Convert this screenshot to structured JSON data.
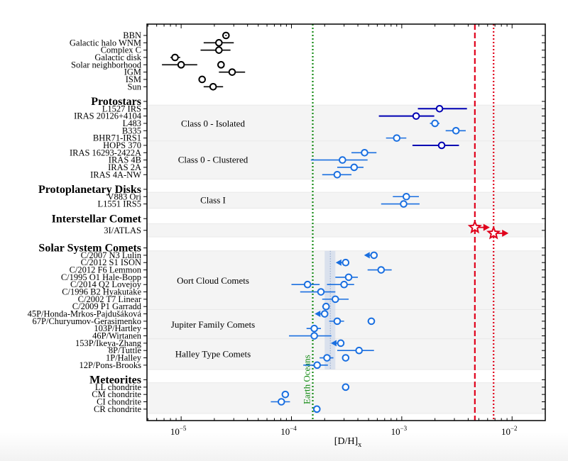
{
  "chart_data": {
    "type": "scatter",
    "title": "",
    "xlabel": "[D/H]",
    "xlabel_sub": "x",
    "xscale": "log",
    "xlim": [
      4.9e-06,
      0.02
    ],
    "x_ticks": [
      {
        "value": 1e-05,
        "base": "10",
        "exp": "−5"
      },
      {
        "value": 0.0001,
        "base": "10",
        "exp": "−4"
      },
      {
        "value": 0.001,
        "base": "10",
        "exp": "−3"
      },
      {
        "value": 0.01,
        "base": "10",
        "exp": "−2"
      }
    ],
    "colors": {
      "black": "#000000",
      "navy": "#0000b3",
      "blue": "#1a6fe0",
      "red": "#e0001b",
      "green": "#138a13",
      "band": "#c8d4e8",
      "group": "#f4f4f4"
    },
    "rows": [
      {
        "label": "BBN",
        "heading": false,
        "y": 0
      },
      {
        "label": "Galactic halo WNM",
        "heading": false,
        "y": 1
      },
      {
        "label": "Complex C",
        "heading": false,
        "y": 2
      },
      {
        "label": "Galactic disk",
        "heading": false,
        "y": 3
      },
      {
        "label": "Solar neighborhood",
        "heading": false,
        "y": 4
      },
      {
        "label": "IGM",
        "heading": false,
        "y": 5
      },
      {
        "label": "ISM",
        "heading": false,
        "y": 6
      },
      {
        "label": "Sun",
        "heading": false,
        "y": 7
      },
      {
        "label": "Protostars",
        "heading": true,
        "y": 9
      },
      {
        "label": "L1527 IRS",
        "heading": false,
        "y": 10
      },
      {
        "label": "IRAS 20126+4104",
        "heading": false,
        "y": 11
      },
      {
        "label": "L483",
        "heading": false,
        "y": 12
      },
      {
        "label": "B335",
        "heading": false,
        "y": 13
      },
      {
        "label": "BHR71-IRS1",
        "heading": false,
        "y": 14
      },
      {
        "label": "HOPS 370",
        "heading": false,
        "y": 15
      },
      {
        "label": "IRAS 16293-2422A",
        "heading": false,
        "y": 16
      },
      {
        "label": "IRAS 4B",
        "heading": false,
        "y": 17
      },
      {
        "label": "IRAS 2A",
        "heading": false,
        "y": 18
      },
      {
        "label": "IRAS 4A-NW",
        "heading": false,
        "y": 19
      },
      {
        "label": "Protoplanetary Disks",
        "heading": true,
        "y": 21
      },
      {
        "label": "V883 Ori",
        "heading": false,
        "y": 22
      },
      {
        "label": "L1551 IRS5",
        "heading": false,
        "y": 23
      },
      {
        "label": "Interstellar Comet",
        "heading": true,
        "y": 25
      },
      {
        "label": "3I/ATLAS",
        "heading": false,
        "y": 26.6
      },
      {
        "label": "Solar System Comets",
        "heading": true,
        "y": 29
      },
      {
        "label": "C/2007 N3 Lulin",
        "heading": false,
        "y": 30
      },
      {
        "label": "C/2012 S1 ISON",
        "heading": false,
        "y": 31
      },
      {
        "label": "C/2012 F6 Lemmon",
        "heading": false,
        "y": 32
      },
      {
        "label": "C/1995 O1 Hale-Bopp",
        "heading": false,
        "y": 33
      },
      {
        "label": "C/2014 Q2 Lovejoy",
        "heading": false,
        "y": 34
      },
      {
        "label": "C/1996 B2 Hyakutake",
        "heading": false,
        "y": 35
      },
      {
        "label": "C/2002 T7 Linear",
        "heading": false,
        "y": 36
      },
      {
        "label": "C/2009 P1 Garradd",
        "heading": false,
        "y": 37
      },
      {
        "label": "45P/Honda-Mrkos-Pajdušáková",
        "heading": false,
        "y": 38
      },
      {
        "label": "67P/Churyumov-Gerasimenko",
        "heading": false,
        "y": 39
      },
      {
        "label": "103P/Hartley",
        "heading": false,
        "y": 40
      },
      {
        "label": "46P/Wirtanen",
        "heading": false,
        "y": 41
      },
      {
        "label": "153P/Ikeya-Zhang",
        "heading": false,
        "y": 42
      },
      {
        "label": "8P/Tuttle",
        "heading": false,
        "y": 43
      },
      {
        "label": "1P/Halley",
        "heading": false,
        "y": 44
      },
      {
        "label": "12P/Pons-Brooks",
        "heading": false,
        "y": 45
      },
      {
        "label": "Meteorites",
        "heading": true,
        "y": 47
      },
      {
        "label": "LL chondrite",
        "heading": false,
        "y": 48
      },
      {
        "label": "CM chondrite",
        "heading": false,
        "y": 49
      },
      {
        "label": "CI chondrite",
        "heading": false,
        "y": 50
      },
      {
        "label": "CR chondrite",
        "heading": false,
        "y": 51
      }
    ],
    "groups": [
      {
        "label": "Class 0 - Isolated",
        "y_from": 9.6,
        "y_to": 14.5
      },
      {
        "label": "Class 0 - Clustered",
        "y_from": 14.5,
        "y_to": 19.5
      },
      {
        "label": "Class I",
        "y_from": 21.5,
        "y_to": 23.5
      },
      {
        "label": "",
        "y_from": 25.8,
        "y_to": 27.4
      },
      {
        "label": "Oort Cloud Comets",
        "y_from": 29.5,
        "y_to": 37.5
      },
      {
        "label": "Jupiter Family Comets",
        "y_from": 37.5,
        "y_to": 41.5
      },
      {
        "label": "Halley Type Comets",
        "y_from": 41.5,
        "y_to": 45.5
      },
      {
        "label": "",
        "y_from": 47.5,
        "y_to": 51.5
      }
    ],
    "points": [
      {
        "name": "BBN",
        "y": 0,
        "x": 2.55e-05,
        "lo": 2.5e-05,
        "hi": 2.6e-05,
        "color": "black",
        "marker": "circle-dot"
      },
      {
        "name": "Galactic halo WNM",
        "y": 1,
        "x": 2.2e-05,
        "lo": 1.6e-05,
        "hi": 3e-05,
        "color": "black",
        "marker": "circle"
      },
      {
        "name": "Complex C",
        "y": 2,
        "x": 2.2e-05,
        "lo": 1.5e-05,
        "hi": 2.8e-05,
        "color": "black",
        "marker": "circle"
      },
      {
        "name": "Galactic disk",
        "y": 3,
        "x": 8.8e-06,
        "lo": 8e-06,
        "hi": 9.8e-06,
        "color": "black",
        "marker": "circle"
      },
      {
        "name": "Solar neighborhood",
        "y": 4,
        "x": 1e-05,
        "lo": 6.7e-06,
        "hi": 1.4e-05,
        "color": "black",
        "marker": "circle"
      },
      {
        "name": "Solar neighborhood",
        "y": 4,
        "x": 2.3e-05,
        "lo": 2.15e-05,
        "hi": 2.45e-05,
        "color": "black",
        "marker": "circle"
      },
      {
        "name": "IGM",
        "y": 5,
        "x": 2.9e-05,
        "lo": 2.2e-05,
        "hi": 3.8e-05,
        "color": "black",
        "marker": "circle"
      },
      {
        "name": "ISM",
        "y": 6,
        "x": 1.55e-05,
        "lo": 1.5e-05,
        "hi": 1.6e-05,
        "color": "black",
        "marker": "circle"
      },
      {
        "name": "Sun",
        "y": 7,
        "x": 1.95e-05,
        "lo": 1.6e-05,
        "hi": 2.4e-05,
        "color": "black",
        "marker": "circle"
      },
      {
        "name": "L1527 IRS",
        "y": 10,
        "x": 0.0022,
        "lo": 0.0014,
        "hi": 0.0039,
        "color": "navy",
        "marker": "circle"
      },
      {
        "name": "IRAS 20126+4104",
        "y": 11,
        "x": 0.00135,
        "lo": 0.00062,
        "hi": 0.00197,
        "color": "navy",
        "marker": "circle"
      },
      {
        "name": "L483",
        "y": 12,
        "x": 0.002,
        "lo": 0.0018,
        "hi": 0.0022,
        "color": "blue",
        "marker": "circle"
      },
      {
        "name": "B335",
        "y": 13,
        "x": 0.0031,
        "lo": 0.0025,
        "hi": 0.0038,
        "color": "blue",
        "marker": "circle"
      },
      {
        "name": "BHR71-IRS1",
        "y": 14,
        "x": 0.0009,
        "lo": 0.00072,
        "hi": 0.0011,
        "color": "blue",
        "marker": "circle"
      },
      {
        "name": "HOPS 370",
        "y": 15,
        "x": 0.0023,
        "lo": 0.00125,
        "hi": 0.0033,
        "color": "navy",
        "marker": "circle"
      },
      {
        "name": "IRAS 16293-2422A",
        "y": 16,
        "x": 0.00046,
        "lo": 0.00035,
        "hi": 0.00059,
        "color": "blue",
        "marker": "circle"
      },
      {
        "name": "IRAS 4B",
        "y": 17,
        "x": 0.00029,
        "lo": 0.00015,
        "hi": 0.00049,
        "color": "blue",
        "marker": "circle"
      },
      {
        "name": "IRAS 2A",
        "y": 18,
        "x": 0.00037,
        "lo": 0.00026,
        "hi": 0.00045,
        "color": "blue",
        "marker": "circle"
      },
      {
        "name": "IRAS 4A-NW",
        "y": 19,
        "x": 0.00026,
        "lo": 0.00019,
        "hi": 0.00035,
        "color": "blue",
        "marker": "circle"
      },
      {
        "name": "V883 Ori",
        "y": 22,
        "x": 0.0011,
        "lo": 0.00083,
        "hi": 0.00143,
        "color": "blue",
        "marker": "circle"
      },
      {
        "name": "L1551 IRS5",
        "y": 23,
        "x": 0.00104,
        "lo": 0.00065,
        "hi": 0.00145,
        "color": "blue",
        "marker": "circle"
      },
      {
        "name": "3I/ATLAS",
        "y": 26.2,
        "x": 0.0046,
        "color": "red",
        "marker": "star",
        "limit": "lower"
      },
      {
        "name": "3I/ATLAS",
        "y": 27.0,
        "x": 0.0068,
        "color": "red",
        "marker": "star",
        "limit": "lower"
      },
      {
        "name": "C/2007 N3 Lulin",
        "y": 30,
        "x": 0.00056,
        "color": "blue",
        "marker": "circle",
        "limit": "upper"
      },
      {
        "name": "C/2012 S1 ISON",
        "y": 31,
        "x": 0.00031,
        "color": "blue",
        "marker": "circle",
        "limit": "upper"
      },
      {
        "name": "C/2012 F6 Lemmon",
        "y": 32,
        "x": 0.00065,
        "lo": 0.00049,
        "hi": 0.00081,
        "color": "blue",
        "marker": "circle"
      },
      {
        "name": "C/1995 O1 Hale-Bopp",
        "y": 33,
        "x": 0.00033,
        "lo": 0.00025,
        "hi": 0.0004,
        "color": "blue",
        "marker": "circle"
      },
      {
        "name": "C/2014 Q2 Lovejoy",
        "y": 34,
        "x": 0.00014,
        "lo": 0.0001,
        "hi": 0.00018,
        "color": "blue",
        "marker": "circle"
      },
      {
        "name": "C/2014 Q2 Lovejoy",
        "y": 34,
        "x": 0.0003,
        "lo": 0.00021,
        "hi": 0.00037,
        "color": "blue",
        "marker": "circle"
      },
      {
        "name": "C/1996 B2 Hyakutake",
        "y": 35,
        "x": 0.000185,
        "lo": 0.00012,
        "hi": 0.00025,
        "color": "blue",
        "marker": "circle"
      },
      {
        "name": "C/2002 T7 Linear",
        "y": 36,
        "x": 0.00025,
        "lo": 0.00019,
        "hi": 0.00033,
        "color": "blue",
        "marker": "circle"
      },
      {
        "name": "C/2009 P1 Garradd",
        "y": 37,
        "x": 0.000206,
        "lo": 0.00019,
        "hi": 0.00022,
        "color": "blue",
        "marker": "circle"
      },
      {
        "name": "45P/Honda-Mrkos-Pajdušáková",
        "y": 38,
        "x": 0.0002,
        "color": "blue",
        "marker": "circle",
        "limit": "upper"
      },
      {
        "name": "67P/Churyumov-Gerasimenko",
        "y": 39,
        "x": 0.00026,
        "lo": 0.00022,
        "hi": 0.0003,
        "color": "blue",
        "marker": "circle"
      },
      {
        "name": "67P/Churyumov-Gerasimenko",
        "y": 39,
        "x": 0.00053,
        "lo": 0.00049,
        "hi": 0.00057,
        "color": "blue",
        "marker": "circle"
      },
      {
        "name": "103P/Hartley",
        "y": 40,
        "x": 0.000161,
        "lo": 0.000137,
        "hi": 0.000185,
        "color": "blue",
        "marker": "circle"
      },
      {
        "name": "46P/Wirtanen",
        "y": 41,
        "x": 0.000161,
        "lo": 9.5e-05,
        "hi": 0.00023,
        "color": "blue",
        "marker": "circle"
      },
      {
        "name": "153P/Ikeya-Zhang",
        "y": 42,
        "x": 0.00028,
        "color": "blue",
        "marker": "circle",
        "limit": "upper"
      },
      {
        "name": "8P/Tuttle",
        "y": 43,
        "x": 0.00041,
        "lo": 0.00026,
        "hi": 0.00056,
        "color": "blue",
        "marker": "circle"
      },
      {
        "name": "1P/Halley",
        "y": 44,
        "x": 0.00021,
        "lo": 0.00018,
        "hi": 0.00024,
        "color": "blue",
        "marker": "circle"
      },
      {
        "name": "1P/Halley",
        "y": 44,
        "x": 0.00031,
        "lo": 0.0003,
        "hi": 0.00032,
        "color": "blue",
        "marker": "circle"
      },
      {
        "name": "12P/Pons-Brooks",
        "y": 45,
        "x": 0.000171,
        "lo": 0.000128,
        "hi": 0.000214,
        "color": "blue",
        "marker": "circle"
      },
      {
        "name": "LL chondrite",
        "y": 48,
        "x": 0.00031,
        "lo": 0.00029,
        "hi": 0.00033,
        "color": "blue",
        "marker": "circle"
      },
      {
        "name": "CM chondrite",
        "y": 49,
        "x": 8.8e-05,
        "lo": 8.4e-05,
        "hi": 9.2e-05,
        "color": "blue",
        "marker": "circle"
      },
      {
        "name": "CI chondrite",
        "y": 50,
        "x": 8.1e-05,
        "lo": 6.5e-05,
        "hi": 9.7e-05,
        "color": "blue",
        "marker": "circle"
      },
      {
        "name": "CR chondrite",
        "y": 51,
        "x": 0.00017,
        "lo": 0.000165,
        "hi": 0.000175,
        "color": "blue",
        "marker": "circle"
      }
    ],
    "vlines": [
      {
        "name": "Earth Oceans",
        "x": 0.000156,
        "style": "dotted",
        "color": "green",
        "label": "Earth Oceans"
      },
      {
        "name": "3I/ATLAS limit 1",
        "x": 0.0046,
        "style": "dashed",
        "color": "red",
        "label": ""
      },
      {
        "name": "3I/ATLAS limit 2",
        "x": 0.0068,
        "style": "dotted",
        "color": "red",
        "label": ""
      }
    ],
    "vband": {
      "name": "comet mean band",
      "x_lo": 0.0002,
      "x_hi": 0.00025,
      "center": 0.000225
    }
  }
}
